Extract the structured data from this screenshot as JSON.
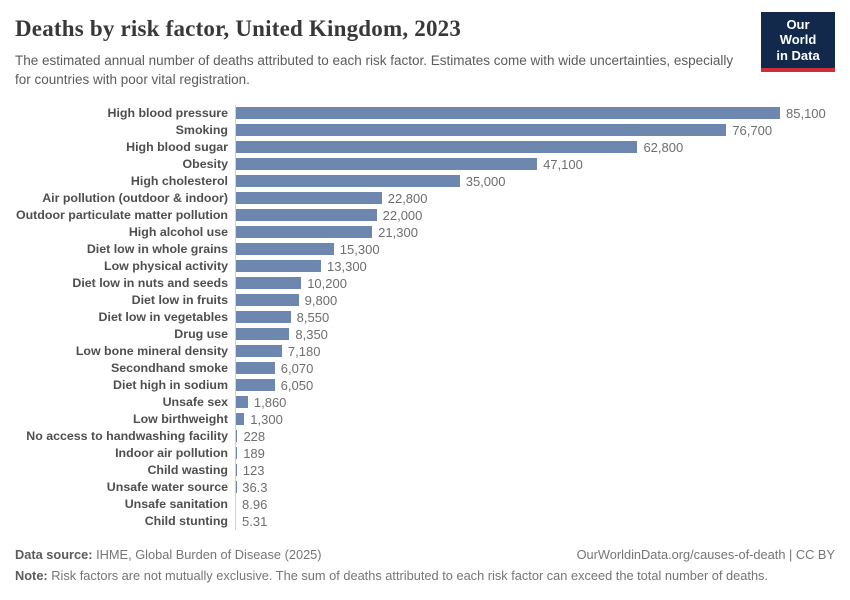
{
  "header": {
    "title": "Deaths by risk factor, United Kingdom, 2023",
    "subtitle": "The estimated annual number of deaths attributed to each risk factor. Estimates come with wide uncertainties, especially for countries with poor vital registration.",
    "logo": {
      "line1": "Our World",
      "line2": "in Data"
    }
  },
  "chart_data": {
    "type": "bar",
    "orientation": "horizontal",
    "title": "Deaths by risk factor, United Kingdom, 2023",
    "xlabel": "",
    "ylabel": "",
    "xlim": [
      0,
      85100
    ],
    "grid": false,
    "legend": false,
    "bar_color": "#6d87af",
    "categories": [
      "High blood pressure",
      "Smoking",
      "High blood sugar",
      "Obesity",
      "High cholesterol",
      "Air pollution (outdoor & indoor)",
      "Outdoor particulate matter pollution",
      "High alcohol use",
      "Diet low in whole grains",
      "Low physical activity",
      "Diet low in nuts and seeds",
      "Diet low in fruits",
      "Diet low in vegetables",
      "Drug use",
      "Low bone mineral density",
      "Secondhand smoke",
      "Diet high in sodium",
      "Unsafe sex",
      "Low birthweight",
      "No access to handwashing facility",
      "Indoor air pollution",
      "Child wasting",
      "Unsafe water source",
      "Unsafe sanitation",
      "Child stunting"
    ],
    "values": [
      85100,
      76700,
      62800,
      47100,
      35000,
      22800,
      22000,
      21300,
      15300,
      13300,
      10200,
      9800,
      8550,
      8350,
      7180,
      6070,
      6050,
      1860,
      1300,
      228,
      189,
      123,
      36.3,
      8.96,
      5.31
    ],
    "value_labels": [
      "85,100",
      "76,700",
      "62,800",
      "47,100",
      "35,000",
      "22,800",
      "22,000",
      "21,300",
      "15,300",
      "13,300",
      "10,200",
      "9,800",
      "8,550",
      "8,350",
      "7,180",
      "6,070",
      "6,050",
      "1,860",
      "1,300",
      "228",
      "189",
      "123",
      "36.3",
      "8.96",
      "5.31"
    ]
  },
  "footer": {
    "datasource_label": "Data source:",
    "datasource_text": " IHME, Global Burden of Disease (2025)",
    "link_text": "OurWorldinData.org/causes-of-death | CC BY",
    "note_label": "Note:",
    "note_text": " Risk factors are not mutually exclusive. The sum of deaths attributed to each risk factor can exceed the total number of deaths."
  },
  "colors": {
    "bar": "#6d87af",
    "axis_line": "#ccd3da",
    "title_text": "#383838",
    "subtitle_text": "#5b5b5b",
    "category_label": "#4e4e4e",
    "value_label": "#6e6e6e",
    "footer_text": "#757575",
    "logo_bg": "#12294b",
    "logo_accent": "#cf2f38"
  }
}
